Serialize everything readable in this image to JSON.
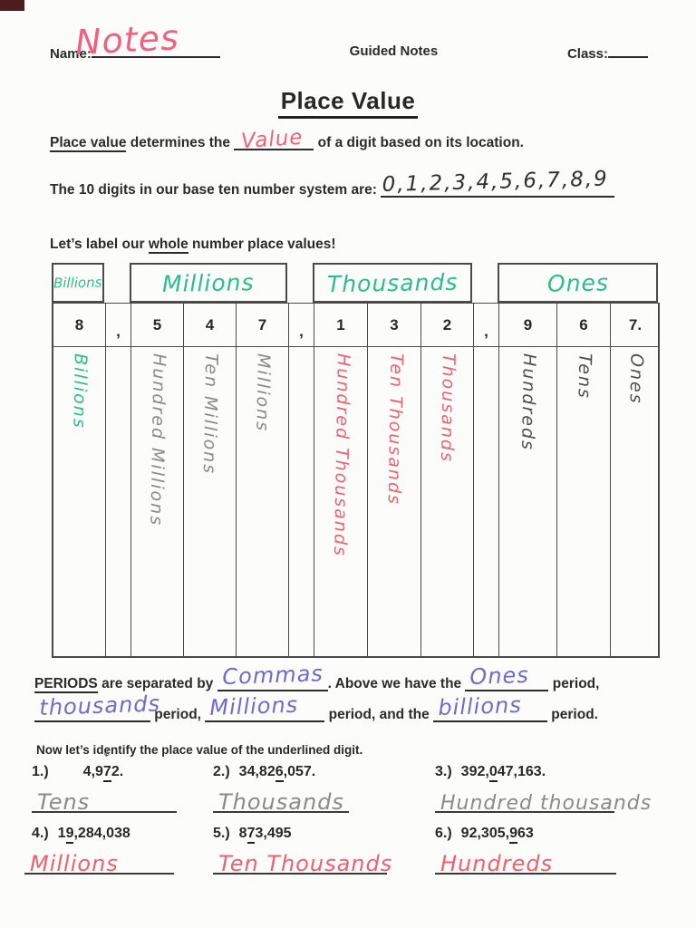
{
  "header": {
    "name_label": "Name:",
    "name_value": "Notes",
    "doc_type": "Guided Notes",
    "class_label": "Class:"
  },
  "title": "Place Value",
  "definition": {
    "lead_bold": "Place value",
    "mid": " determines the ",
    "answer": "Value",
    "tail": " of a digit based on its location."
  },
  "digits_line": {
    "prompt": "The 10 digits in our base ten number system are: ",
    "answer": "0,1,2,3,4,5,6,7,8,9"
  },
  "label_prompt": {
    "pre": "Let’s label our ",
    "bold": "whole",
    "post": " number place values!"
  },
  "place_table": {
    "periods": [
      {
        "label": "Billions"
      },
      {
        "label": "Millions"
      },
      {
        "label": "Thousands"
      },
      {
        "label": "Ones"
      }
    ],
    "digit_cells": [
      "8",
      ",",
      "5",
      "4",
      "7",
      ",",
      "1",
      "3",
      "2",
      ",",
      "9",
      "6",
      "7."
    ],
    "value_labels": [
      {
        "text": "Billions",
        "color": "#29bd8f"
      },
      {
        "text": "Hundred Millions",
        "color": "#8a8a8a"
      },
      {
        "text": "Ten Millions",
        "color": "#8a8a8a"
      },
      {
        "text": "Millions",
        "color": "#8a8a8a"
      },
      {
        "text": "Hundred Thousands",
        "color": "#ee5f6f"
      },
      {
        "text": "Ten Thousands",
        "color": "#ee5f6f"
      },
      {
        "text": "Thousands",
        "color": "#ee5f6f"
      },
      {
        "text": "Hundreds",
        "color": "#4f4f4f"
      },
      {
        "text": "Tens",
        "color": "#4f4f4f"
      },
      {
        "text": "Ones",
        "color": "#4f4f4f"
      }
    ]
  },
  "periods_para": {
    "lead_bold": "PERIODS",
    "t1": " are separated by ",
    "a1": "Commas",
    "t2": ". Above we have the ",
    "a2": "Ones",
    "t3": " period, ",
    "a3": "thousands",
    "t4": " period, ",
    "a4": "Millions",
    "t5": " period, and the ",
    "a5": "billions",
    "t6": " period."
  },
  "identify_prompt": "Now let’s identify the place value of the underlined digit.",
  "problems": [
    {
      "num": "1.)",
      "pre": "4,9",
      "underlined": "7",
      "post": "2.",
      "answer": "Tens",
      "arrow": "↓"
    },
    {
      "num": "2.)",
      "pre": "34,82",
      "underlined": "6",
      "post": ",057.",
      "answer": "Thousands"
    },
    {
      "num": "3.)",
      "pre": "392,",
      "underlined": "0",
      "post": "47,163.",
      "answer": "Hundred thousands"
    },
    {
      "num": "4.)",
      "pre": "1",
      "underlined": "9",
      "post": ",284,038",
      "answer": "Millions"
    },
    {
      "num": "5.)",
      "pre": "8",
      "underlined": "7",
      "post": "3,495",
      "answer": "Ten Thousands"
    },
    {
      "num": "6.)",
      "pre": "92,305,",
      "underlined": "9",
      "post": "63",
      "answer": "Hundreds"
    }
  ],
  "colors": {
    "pink_marker": "#ef617c",
    "red_pink_pen": "#ee5f6f",
    "teal_marker": "#29bd8f",
    "pencil_gray": "#8a8a8a",
    "pencil_dark": "#4f4f4f",
    "purple_ink": "#6e6ace",
    "print_ink": "#2b2b2b",
    "table_line": "#4a4a4a"
  }
}
